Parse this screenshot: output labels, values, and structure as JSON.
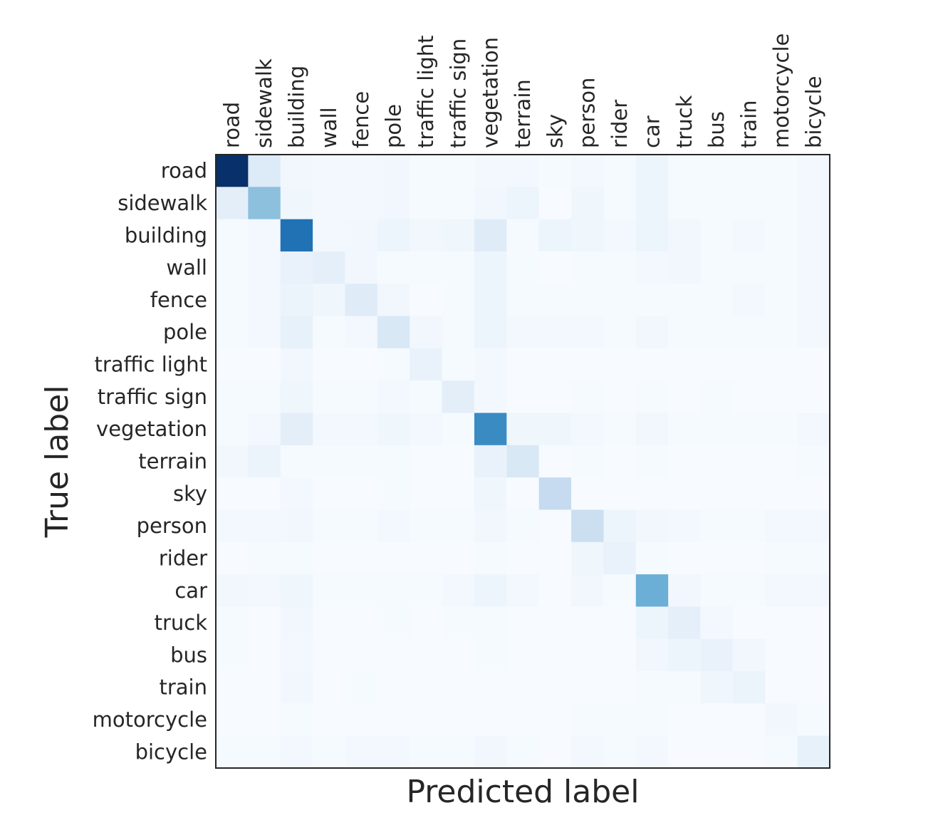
{
  "chart_data": {
    "type": "heatmap",
    "colormap": "Blues",
    "xlabel": "Predicted label",
    "ylabel": "True label",
    "x_labels_position": "top",
    "x_labels_rotation": "vertical",
    "categories": [
      "road",
      "sidewalk",
      "building",
      "wall",
      "fence",
      "pole",
      "traffic light",
      "traffic sign",
      "vegetation",
      "terrain",
      "sky",
      "person",
      "rider",
      "car",
      "truck",
      "bus",
      "train",
      "motorcycle",
      "bicycle"
    ],
    "value_range": [
      0,
      1
    ],
    "values": [
      [
        1.0,
        0.13,
        0.03,
        0.02,
        0.02,
        0.03,
        0.01,
        0.01,
        0.02,
        0.02,
        0.01,
        0.02,
        0.01,
        0.05,
        0.01,
        0.01,
        0.01,
        0.01,
        0.02
      ],
      [
        0.1,
        0.42,
        0.04,
        0.02,
        0.02,
        0.03,
        0.01,
        0.01,
        0.03,
        0.05,
        0.0,
        0.04,
        0.01,
        0.05,
        0.01,
        0.01,
        0.01,
        0.01,
        0.02
      ],
      [
        0.01,
        0.02,
        0.75,
        0.02,
        0.03,
        0.05,
        0.03,
        0.04,
        0.12,
        0.01,
        0.05,
        0.04,
        0.02,
        0.05,
        0.03,
        0.01,
        0.02,
        0.01,
        0.02
      ],
      [
        0.01,
        0.02,
        0.07,
        0.09,
        0.03,
        0.01,
        0.01,
        0.01,
        0.05,
        0.01,
        0.0,
        0.01,
        0.01,
        0.02,
        0.03,
        0.01,
        0.01,
        0.01,
        0.02
      ],
      [
        0.01,
        0.02,
        0.06,
        0.04,
        0.12,
        0.03,
        0.0,
        0.01,
        0.05,
        0.01,
        0.01,
        0.01,
        0.01,
        0.01,
        0.01,
        0.01,
        0.02,
        0.01,
        0.02
      ],
      [
        0.01,
        0.02,
        0.08,
        0.01,
        0.02,
        0.15,
        0.03,
        0.01,
        0.05,
        0.02,
        0.02,
        0.02,
        0.01,
        0.03,
        0.01,
        0.01,
        0.01,
        0.01,
        0.02
      ],
      [
        0.0,
        0.0,
        0.03,
        0.0,
        0.0,
        0.01,
        0.07,
        0.01,
        0.02,
        0.0,
        0.0,
        0.0,
        0.0,
        0.0,
        0.0,
        0.0,
        0.0,
        0.0,
        0.0
      ],
      [
        0.01,
        0.01,
        0.04,
        0.01,
        0.01,
        0.02,
        0.01,
        0.1,
        0.02,
        0.0,
        0.0,
        0.01,
        0.0,
        0.01,
        0.0,
        0.01,
        0.0,
        0.0,
        0.0
      ],
      [
        0.01,
        0.02,
        0.1,
        0.02,
        0.02,
        0.04,
        0.02,
        0.01,
        0.65,
        0.04,
        0.04,
        0.02,
        0.01,
        0.03,
        0.01,
        0.01,
        0.01,
        0.01,
        0.02
      ],
      [
        0.03,
        0.06,
        0.01,
        0.01,
        0.01,
        0.01,
        0.0,
        0.0,
        0.07,
        0.15,
        0.0,
        0.01,
        0.0,
        0.01,
        0.0,
        0.0,
        0.0,
        0.0,
        0.01
      ],
      [
        0.0,
        0.0,
        0.02,
        0.0,
        0.0,
        0.01,
        0.0,
        0.0,
        0.04,
        0.0,
        0.25,
        0.0,
        0.0,
        0.0,
        0.0,
        0.0,
        0.0,
        0.0,
        0.0
      ],
      [
        0.02,
        0.02,
        0.03,
        0.01,
        0.01,
        0.02,
        0.01,
        0.01,
        0.03,
        0.01,
        0.0,
        0.22,
        0.05,
        0.03,
        0.02,
        0.01,
        0.01,
        0.02,
        0.02
      ],
      [
        0.0,
        0.01,
        0.01,
        0.0,
        0.0,
        0.0,
        0.0,
        0.0,
        0.01,
        0.0,
        0.0,
        0.04,
        0.07,
        0.01,
        0.0,
        0.0,
        0.0,
        0.01,
        0.01
      ],
      [
        0.03,
        0.02,
        0.04,
        0.01,
        0.01,
        0.01,
        0.01,
        0.02,
        0.05,
        0.02,
        0.0,
        0.03,
        0.01,
        0.5,
        0.03,
        0.01,
        0.01,
        0.02,
        0.02
      ],
      [
        0.01,
        0.0,
        0.03,
        0.0,
        0.0,
        0.01,
        0.0,
        0.01,
        0.01,
        0.0,
        0.0,
        0.0,
        0.0,
        0.05,
        0.09,
        0.02,
        0.0,
        0.0,
        0.0
      ],
      [
        0.01,
        0.0,
        0.02,
        0.0,
        0.0,
        0.0,
        0.0,
        0.0,
        0.01,
        0.0,
        0.0,
        0.0,
        0.0,
        0.03,
        0.05,
        0.07,
        0.03,
        0.0,
        0.0
      ],
      [
        0.0,
        0.0,
        0.03,
        0.0,
        0.01,
        0.0,
        0.0,
        0.0,
        0.0,
        0.0,
        0.0,
        0.0,
        0.0,
        0.01,
        0.01,
        0.04,
        0.06,
        0.0,
        0.0
      ],
      [
        0.0,
        0.0,
        0.01,
        0.0,
        0.0,
        0.0,
        0.0,
        0.0,
        0.0,
        0.0,
        0.0,
        0.01,
        0.01,
        0.01,
        0.0,
        0.0,
        0.0,
        0.03,
        0.01
      ],
      [
        0.01,
        0.01,
        0.02,
        0.01,
        0.02,
        0.02,
        0.01,
        0.01,
        0.03,
        0.01,
        0.0,
        0.02,
        0.01,
        0.02,
        0.0,
        0.0,
        0.0,
        0.01,
        0.08
      ]
    ]
  }
}
